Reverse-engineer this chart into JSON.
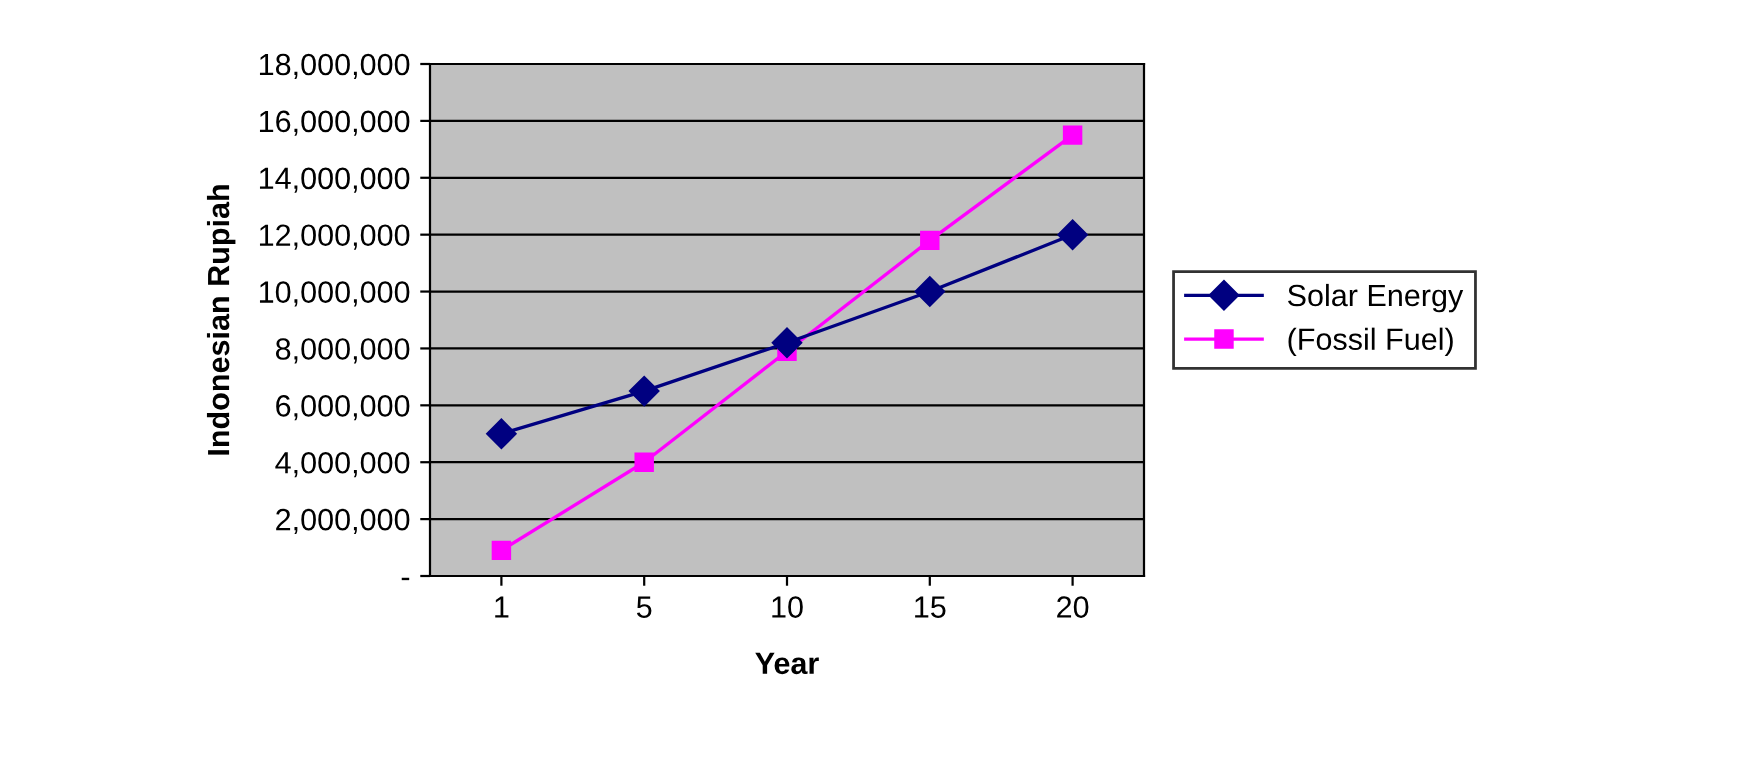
{
  "chart_data": {
    "type": "line",
    "xlabel": "Year",
    "ylabel": "Indonesian Rupiah",
    "categories": [
      "1",
      "5",
      "10",
      "15",
      "20"
    ],
    "series": [
      {
        "name": "Solar Energy",
        "color": "#000080",
        "marker": "diamond",
        "values": [
          5000000,
          6500000,
          8200000,
          10000000,
          12000000
        ]
      },
      {
        "name": "(Fossil Fuel)",
        "color": "#ff00ff",
        "marker": "square",
        "values": [
          900000,
          4000000,
          7900000,
          11800000,
          15500000
        ]
      }
    ],
    "ylim": [
      0,
      18000000
    ],
    "yticks": [
      {
        "value": 0,
        "label": "-"
      },
      {
        "value": 2000000,
        "label": "2,000,000"
      },
      {
        "value": 4000000,
        "label": "4,000,000"
      },
      {
        "value": 6000000,
        "label": "6,000,000"
      },
      {
        "value": 8000000,
        "label": "8,000,000"
      },
      {
        "value": 10000000,
        "label": "10,000,000"
      },
      {
        "value": 12000000,
        "label": "12,000,000"
      },
      {
        "value": 14000000,
        "label": "14,000,000"
      },
      {
        "value": 16000000,
        "label": "16,000,000"
      },
      {
        "value": 18000000,
        "label": "18,000,000"
      }
    ],
    "grid": "y",
    "legend": "right"
  }
}
